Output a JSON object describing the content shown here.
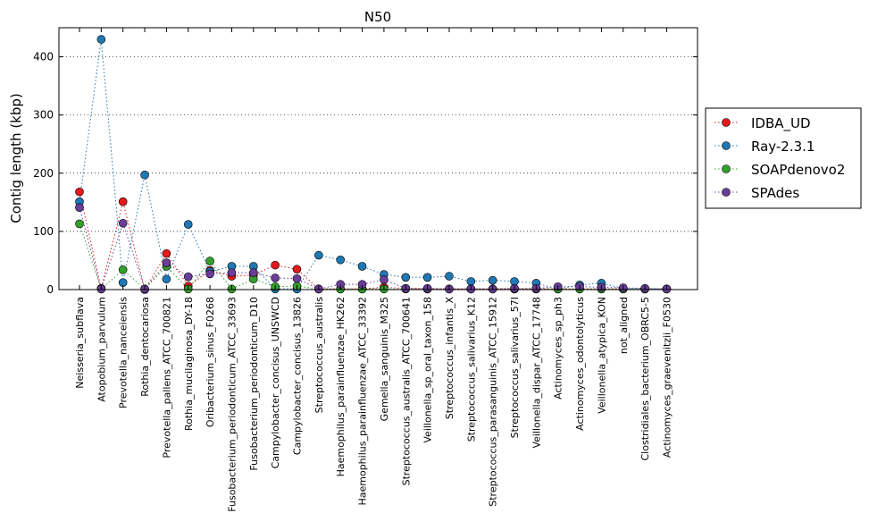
{
  "chart_data": {
    "type": "scatter",
    "title": "N50",
    "xlabel": "",
    "ylabel": "Contig length (kbp)",
    "ylim": [
      0,
      450
    ],
    "yticks": [
      0,
      100,
      200,
      300,
      400
    ],
    "grid": "horizontal dotted",
    "legend_position": "right",
    "categories": [
      "Neisseria_subflava",
      "Atopobium_parvulum",
      "Prevotella_nanceiensis",
      "Rothia_dentocariosa",
      "Prevotella_pallens_ATCC_700821",
      "Rothia_mucilaginosa_DY-18",
      "Oribacterium_sinus_F0268",
      "Fusobacterium_periodonticum_ATCC_33693",
      "Fusobacterium_periodonticum_D10",
      "Campylobacter_concisus_UNSWCD",
      "Campylobacter_concisus_13826",
      "Streptococcus_australis",
      "Haemophilus_parainfluenzae_HK262",
      "Haemophilus_parainfluenzae_ATCC_33392",
      "Gemella_sanguinis_M325",
      "Streptococcus_australis_ATCC_700641",
      "Veillonella_sp_oral_taxon_158",
      "Streptococcus_infantis_X",
      "Streptococcus_salivarius_K12",
      "Streptococcus_parasanguinis_ATCC_15912",
      "Streptococcus_salivarius_57I",
      "Veillonella_dispar_ATCC_17748",
      "Actinomyces_sp_ph3",
      "Actinomyces_odontolyticus",
      "Veillonella_atypica_KON",
      "not_aligned",
      "Clostridiales_bacterium_OBRC5-5",
      "Actinomyces_graevenitzii_F0530"
    ],
    "series": [
      {
        "name": "IDBA_UD",
        "color": "#e31a1c",
        "values": [
          168,
          2,
          151,
          0,
          62,
          6,
          33,
          23,
          25,
          42,
          35,
          1,
          1,
          1,
          4,
          2,
          1,
          1,
          1,
          1,
          1,
          1,
          1,
          1,
          1,
          1,
          1,
          1
        ]
      },
      {
        "name": "Ray-2.3.1",
        "color": "#1f78b4",
        "values": [
          151,
          430,
          12,
          197,
          18,
          112,
          31,
          40,
          40,
          1,
          1,
          59,
          51,
          40,
          26,
          21,
          21,
          23,
          14,
          16,
          14,
          11,
          1,
          8,
          11,
          2,
          1,
          1
        ]
      },
      {
        "name": "SOAPdenovo2",
        "color": "#33a02c",
        "values": [
          113,
          1,
          34,
          1,
          40,
          1,
          49,
          1,
          18,
          5,
          6,
          1,
          1,
          1,
          1,
          1,
          1,
          1,
          1,
          1,
          1,
          1,
          1,
          1,
          1,
          1,
          1,
          1
        ]
      },
      {
        "name": "SPAdes",
        "color": "#6a3d9a",
        "values": [
          141,
          1,
          114,
          1,
          46,
          22,
          27,
          29,
          29,
          20,
          19,
          1,
          9,
          9,
          17,
          2,
          2,
          1,
          1,
          1,
          2,
          2,
          5,
          5,
          4,
          3,
          2,
          1
        ]
      }
    ]
  }
}
